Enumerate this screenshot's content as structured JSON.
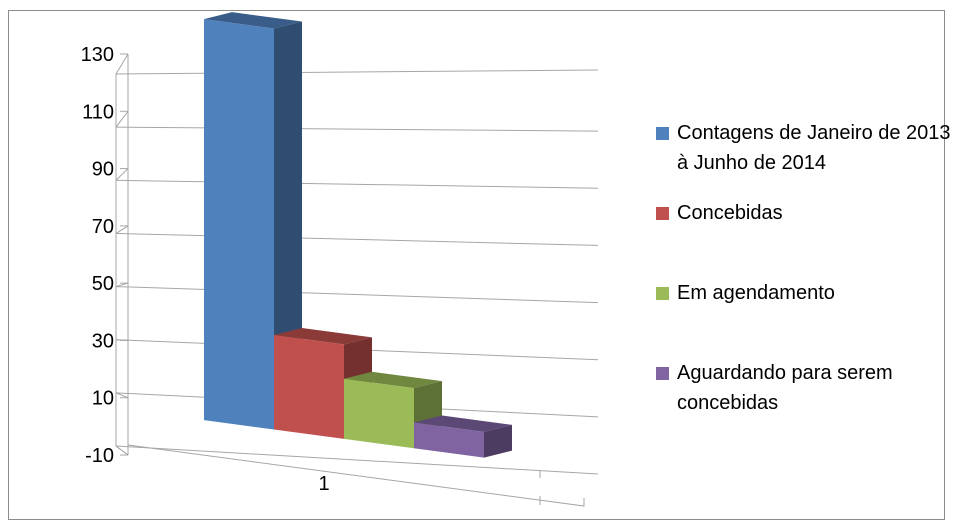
{
  "chart_data": {
    "type": "bar",
    "categories": [
      "1"
    ],
    "series": [
      {
        "name": "Contagens de Janeiro de 2013 à Junho de 2014",
        "values": [
          130
        ],
        "color": "#4F81BD"
      },
      {
        "name": "Concebidas",
        "values": [
          23
        ],
        "color": "#C0504D"
      },
      {
        "name": "Em agendamento",
        "values": [
          11
        ],
        "color": "#9BBB59"
      },
      {
        "name": "Aguardando para serem concebidas",
        "values": [
          -1
        ],
        "color": "#8064A2"
      }
    ],
    "yticks": [
      "130",
      "110",
      "90",
      "70",
      "50",
      "30",
      "10",
      "-10"
    ],
    "ylim": [
      -10,
      130
    ],
    "grid": true,
    "legend_position": "right",
    "style": "3d-column"
  }
}
